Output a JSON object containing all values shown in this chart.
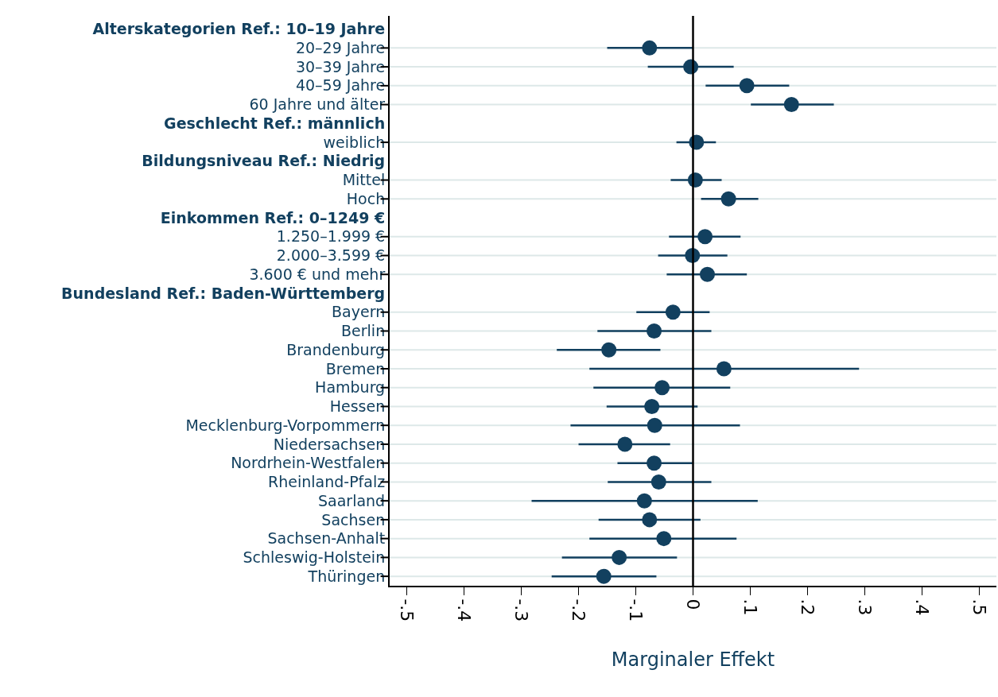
{
  "chart_data": {
    "type": "scatter",
    "orientation": "horizontal",
    "xlabel": "Marginaler Effekt",
    "categories": [
      "Alterskategorien Ref.: 10–19 Jahre",
      "20–29 Jahre",
      "30–39 Jahre",
      "40–59 Jahre",
      "60 Jahre und älter",
      "Geschlecht Ref.: männlich",
      "weiblich",
      "Bildungsniveau Ref.: Niedrig",
      "Mittel",
      "Hoch",
      "Einkommen Ref.: 0–1249 €",
      "1.250–1.999 €",
      "2.000–3.599 €",
      "3.600 € und mehr",
      "Bundesland Ref.: Baden-Württemberg",
      "Bayern",
      "Berlin",
      "Brandenburg",
      "Bremen",
      "Hamburg",
      "Hessen",
      "Mecklenburg-Vorpommern",
      "Niedersachsen",
      "Nordrhein-Westfalen",
      "Rheinland-Pfalz",
      "Saarland",
      "Sachsen",
      "Sachsen-Anhalt",
      "Schleswig-Holstein",
      "Thüringen"
    ],
    "values": [
      null,
      -0.076,
      -0.004,
      0.094,
      0.172,
      null,
      0.006,
      null,
      0.004,
      0.062,
      null,
      0.021,
      -0.001,
      0.025,
      null,
      -0.035,
      -0.068,
      -0.147,
      0.054,
      -0.054,
      -0.072,
      -0.067,
      -0.119,
      -0.068,
      -0.06,
      -0.085,
      -0.076,
      -0.051,
      -0.129,
      -0.156
    ],
    "errors": [
      null,
      [
        -0.15,
        0.0
      ],
      [
        -0.079,
        0.071
      ],
      [
        0.022,
        0.168
      ],
      [
        0.101,
        0.246
      ],
      null,
      [
        -0.029,
        0.04
      ],
      null,
      [
        -0.039,
        0.05
      ],
      [
        0.014,
        0.114
      ],
      null,
      [
        -0.042,
        0.083
      ],
      [
        -0.061,
        0.06
      ],
      [
        -0.046,
        0.094
      ],
      null,
      [
        -0.099,
        0.029
      ],
      [
        -0.167,
        0.032
      ],
      [
        -0.238,
        -0.057
      ],
      [
        -0.181,
        0.29
      ],
      [
        -0.174,
        0.065
      ],
      [
        -0.151,
        0.008
      ],
      [
        -0.214,
        0.082
      ],
      [
        -0.2,
        -0.04
      ],
      [
        -0.132,
        -0.001
      ],
      [
        -0.149,
        0.032
      ],
      [
        -0.282,
        0.113
      ],
      [
        -0.165,
        0.013
      ],
      [
        -0.181,
        0.076
      ],
      [
        -0.229,
        -0.028
      ],
      [
        -0.247,
        -0.064
      ]
    ],
    "color": "#12405f",
    "marker": "circle",
    "grid": "y",
    "xlim": [
      -0.53,
      0.53
    ],
    "xticks": [
      {
        "value": -0.5,
        "label": "-.5"
      },
      {
        "value": -0.4,
        "label": "-.4"
      },
      {
        "value": -0.3,
        "label": "-.3"
      },
      {
        "value": -0.2,
        "label": "-.2"
      },
      {
        "value": -0.1,
        "label": "-.1"
      },
      0,
      {
        "value": 0.1,
        "label": ".1"
      },
      {
        "value": 0.2,
        "label": ".2"
      },
      {
        "value": 0.3,
        "label": ".3"
      },
      {
        "value": 0.4,
        "label": ".4"
      },
      {
        "value": 0.5,
        "label": ".5"
      }
    ],
    "ref_lines": [
      {
        "axis": "x",
        "value": 0,
        "color": "#000000"
      }
    ]
  }
}
